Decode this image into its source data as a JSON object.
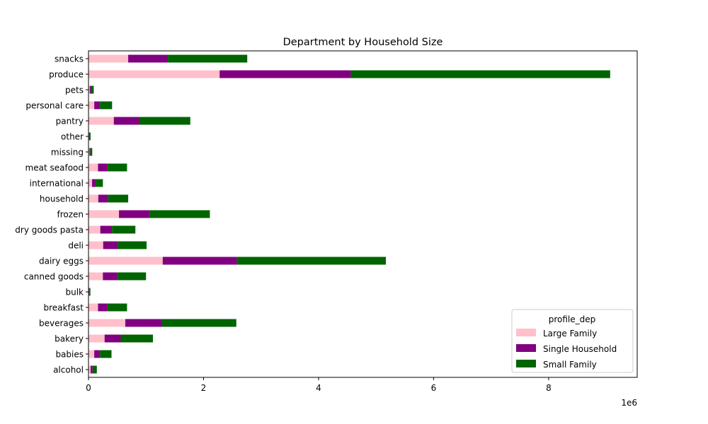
{
  "chart_data": {
    "type": "bar",
    "orientation": "horizontal",
    "stacked": true,
    "title": "Department by Household Size",
    "xlabel": "",
    "ylabel": "",
    "x_offset_label": "1e6",
    "xlim": [
      0,
      9540000
    ],
    "xticks": [
      0,
      2000000,
      4000000,
      6000000,
      8000000
    ],
    "xtick_labels": [
      "0",
      "2",
      "4",
      "6",
      "8"
    ],
    "categories": [
      "alcohol",
      "babies",
      "bakery",
      "beverages",
      "breakfast",
      "bulk",
      "canned goods",
      "dairy eggs",
      "deli",
      "dry goods pasta",
      "frozen",
      "household",
      "international",
      "meat seafood",
      "missing",
      "other",
      "pantry",
      "personal care",
      "pets",
      "produce",
      "snacks"
    ],
    "legend": {
      "title": "profile_dep",
      "position": "lower-right"
    },
    "series": [
      {
        "name": "Large Family",
        "color": "#ffc0cb",
        "values": [
          36000,
          100000,
          280000,
          640000,
          165000,
          8000,
          250000,
          1290000,
          255000,
          205000,
          530000,
          170000,
          62000,
          165000,
          16000,
          9000,
          440000,
          100000,
          22000,
          2280000,
          690000
        ]
      },
      {
        "name": "Single Household",
        "color": "#800080",
        "values": [
          36000,
          100000,
          280000,
          640000,
          165000,
          8000,
          250000,
          1290000,
          255000,
          205000,
          530000,
          170000,
          62000,
          165000,
          16000,
          9000,
          440000,
          100000,
          22000,
          2280000,
          690000
        ]
      },
      {
        "name": "Small Family",
        "color": "#006400",
        "values": [
          73000,
          200000,
          560000,
          1290000,
          340000,
          17000,
          500000,
          2590000,
          500000,
          405000,
          1050000,
          350000,
          126000,
          340000,
          33000,
          18000,
          890000,
          210000,
          47000,
          4510000,
          1380000
        ]
      }
    ]
  }
}
